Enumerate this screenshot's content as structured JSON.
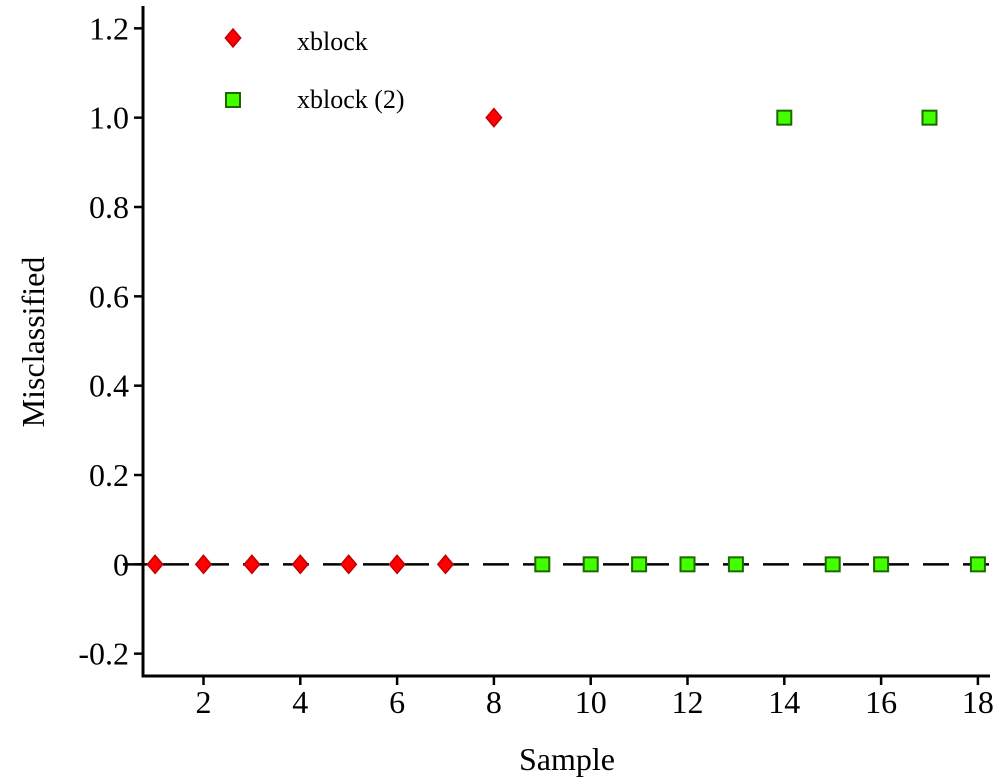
{
  "chart_data": {
    "type": "scatter",
    "title": "",
    "xlabel": "Sample",
    "ylabel": "Misclassified",
    "xlim": [
      0.75,
      18.25
    ],
    "ylim": [
      -0.25,
      1.25
    ],
    "xticks": [
      2,
      4,
      6,
      8,
      10,
      12,
      14,
      16,
      18
    ],
    "xtick_labels": [
      "2",
      "4",
      "6",
      "8",
      "10",
      "12",
      "14",
      "16",
      "18"
    ],
    "yticks": [
      -0.2,
      0,
      0.2,
      0.4,
      0.6,
      0.8,
      1.0,
      1.2
    ],
    "ytick_labels": [
      "-0.2",
      "0",
      "0.2",
      "0.4",
      "0.6",
      "0.8",
      "1.0",
      "1.2"
    ],
    "grid": false,
    "legend_position": "top-left",
    "reference_line": {
      "y": 0,
      "style": "dashed",
      "color": "#000000"
    },
    "series": [
      {
        "name": "xblock",
        "marker": "diamond",
        "color": "#ff0000",
        "edge": "#c00000",
        "x": [
          1,
          2,
          3,
          4,
          5,
          6,
          7,
          8
        ],
        "y": [
          0,
          0,
          0,
          0,
          0,
          0,
          0,
          1
        ]
      },
      {
        "name": "xblock (2)",
        "marker": "square",
        "color": "#44ff00",
        "edge": "#1a6a00",
        "x": [
          9,
          10,
          11,
          12,
          13,
          14,
          15,
          16,
          17,
          18
        ],
        "y": [
          0,
          0,
          0,
          0,
          0,
          1,
          0,
          0,
          1,
          0
        ]
      }
    ]
  }
}
